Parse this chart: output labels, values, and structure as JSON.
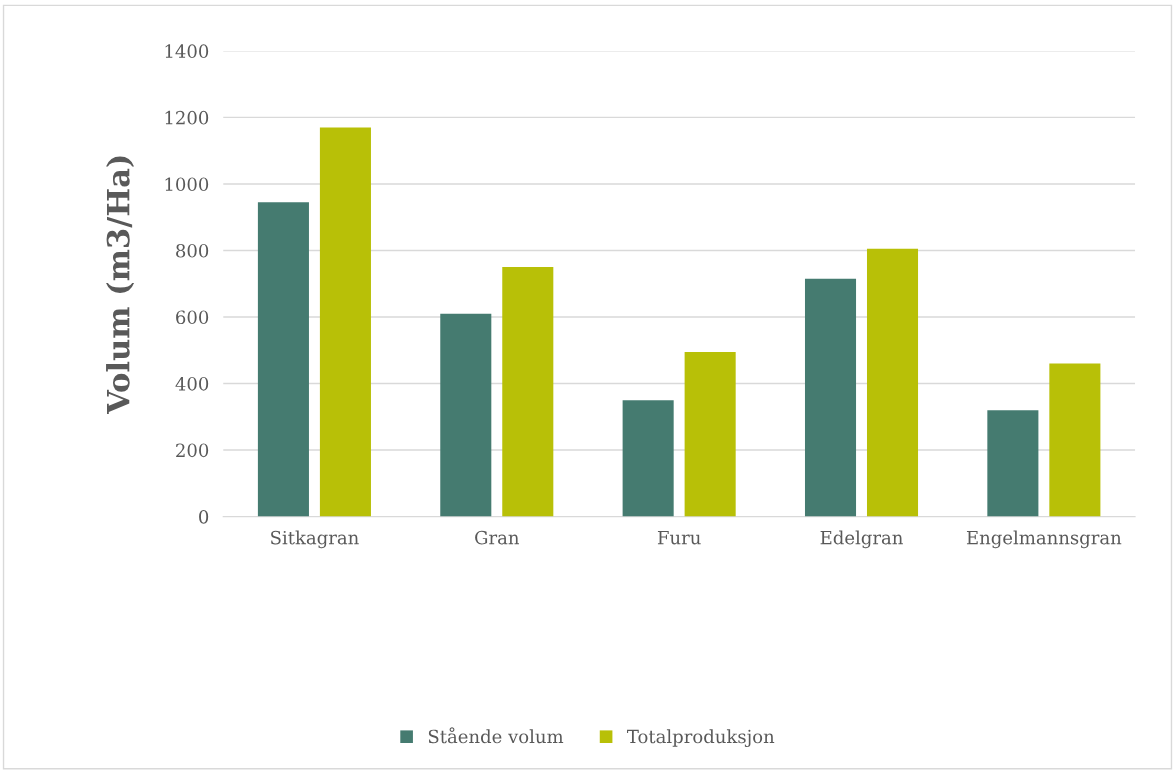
{
  "chart_data": {
    "type": "bar",
    "ylabel": "Volum (m3/Ha)",
    "categories": [
      "Sitkagran",
      "Gran",
      "Furu",
      "Edelgran",
      "Engelmannsgran"
    ],
    "series": [
      {
        "name": "Stående volum",
        "color": "#457b70",
        "values": [
          945,
          610,
          350,
          715,
          320
        ]
      },
      {
        "name": "Totalproduksjon",
        "color": "#b8c007",
        "values": [
          1170,
          750,
          495,
          805,
          460
        ]
      }
    ],
    "ylim": [
      0,
      1400
    ],
    "yticks": [
      0,
      200,
      400,
      600,
      800,
      1000,
      1200,
      1400
    ],
    "grid": "y",
    "legend": "bottom"
  }
}
